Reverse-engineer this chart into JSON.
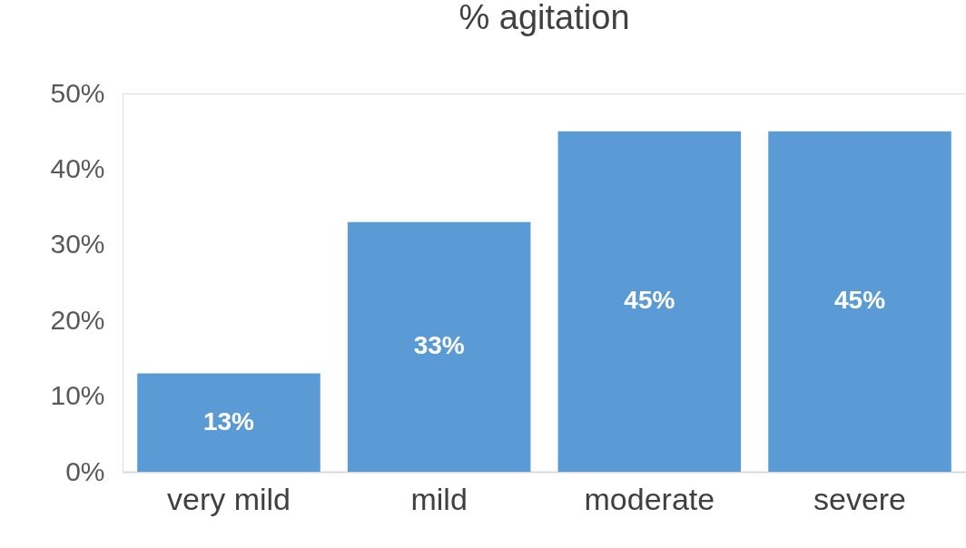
{
  "chart_data": {
    "type": "bar",
    "title": "% agitation",
    "categories": [
      "very mild",
      "mild",
      "moderate",
      "severe"
    ],
    "values": [
      13,
      33,
      45,
      45
    ],
    "value_labels": [
      "13%",
      "33%",
      "45%",
      "45%"
    ],
    "color": "#5b9bd5",
    "ylim": [
      0,
      50
    ],
    "yticks": [
      {
        "value": 0,
        "label": "0%"
      },
      {
        "value": 10,
        "label": "10%"
      },
      {
        "value": 20,
        "label": "20%"
      },
      {
        "value": 30,
        "label": "30%"
      },
      {
        "value": 40,
        "label": "40%"
      },
      {
        "value": 50,
        "label": "50%"
      }
    ],
    "grid": false
  }
}
